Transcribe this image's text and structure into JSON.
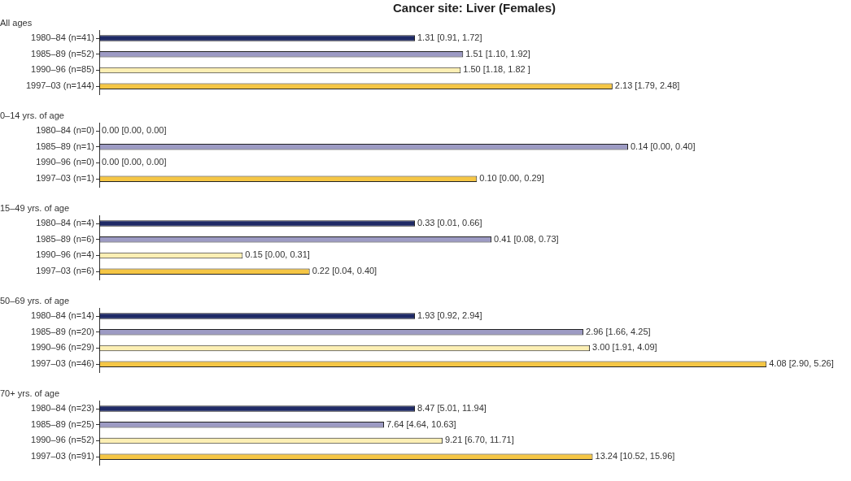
{
  "chart_data": [
    {
      "type": "bar",
      "orientation": "horizontal",
      "title": "Cancer site: Liver (Females)",
      "subtitle": "All ages",
      "categories": [
        "1980–84 (n=41)",
        "1985–89 (n=52)",
        "1990–96 (n=85)",
        "1997–03 (n=144)"
      ],
      "values": [
        1.31,
        1.51,
        1.5,
        2.13
      ],
      "colors": [
        "#1f2a66",
        "#9d9bc4",
        "#fcefb4",
        "#f5c645"
      ],
      "value_labels": [
        "1.31 [0.91, 1.72]",
        "1.51 [1.10, 1.92]",
        "1.50 [1.18, 1.82 ]",
        "2.13 [1.79, 2.48]"
      ]
    },
    {
      "type": "bar",
      "orientation": "horizontal",
      "subtitle": "0–14 yrs. of age",
      "categories": [
        "1980–84 (n=0)",
        "1985–89 (n=1)",
        "1990–96 (n=0)",
        "1997–03 (n=1)"
      ],
      "values": [
        0.0,
        0.14,
        0.0,
        0.1
      ],
      "colors": [
        "#1f2a66",
        "#9d9bc4",
        "#fcefb4",
        "#f5c645"
      ],
      "value_labels": [
        "0.00 [0.00, 0.00]",
        "0.14 [0.00, 0.40]",
        "0.00 [0.00, 0.00]",
        "0.10 [0.00, 0.29]"
      ]
    },
    {
      "type": "bar",
      "orientation": "horizontal",
      "subtitle": "15–49 yrs. of age",
      "categories": [
        "1980–84 (n=4)",
        "1985–89 (n=6)",
        "1990–96 (n=4)",
        "1997–03 (n=6)"
      ],
      "values": [
        0.33,
        0.41,
        0.15,
        0.22
      ],
      "colors": [
        "#1f2a66",
        "#9d9bc4",
        "#fcefb4",
        "#f5c645"
      ],
      "value_labels": [
        "0.33 [0.01, 0.66]",
        "0.41 [0.08, 0.73]",
        "0.15 [0.00, 0.31]",
        "0.22 [0.04, 0.40]"
      ]
    },
    {
      "type": "bar",
      "orientation": "horizontal",
      "subtitle": "50–69 yrs. of age",
      "categories": [
        "1980–84 (n=14)",
        "1985–89 (n=20)",
        "1990–96 (n=29)",
        "1997–03 (n=46)"
      ],
      "values": [
        1.93,
        2.96,
        3.0,
        4.08
      ],
      "colors": [
        "#1f2a66",
        "#9d9bc4",
        "#fcefb4",
        "#f5c645"
      ],
      "value_labels": [
        "1.93 [0.92, 2.94]",
        "2.96 [1.66, 4.25]",
        "3.00 [1.91, 4.09]",
        "4.08 [2.90, 5.26]"
      ]
    },
    {
      "type": "bar",
      "orientation": "horizontal",
      "subtitle": "70+ yrs. of age",
      "categories": [
        "1980–84 (n=23)",
        "1985–89 (n=25)",
        "1990–96 (n=52)",
        "1997–03 (n=91)"
      ],
      "values": [
        8.47,
        7.64,
        9.21,
        13.24
      ],
      "colors": [
        "#1f2a66",
        "#9d9bc4",
        "#fcefb4",
        "#f5c645"
      ],
      "value_labels": [
        "8.47 [5.01, 11.94]",
        "7.64 [4.64, 10.63]",
        "9.21 [6.70, 11.71]",
        "13.24 [10.52, 15.96]"
      ]
    }
  ]
}
